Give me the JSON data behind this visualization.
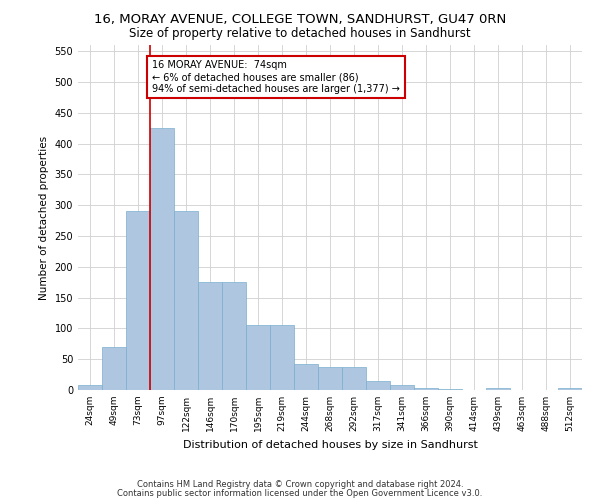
{
  "title1": "16, MORAY AVENUE, COLLEGE TOWN, SANDHURST, GU47 0RN",
  "title2": "Size of property relative to detached houses in Sandhurst",
  "xlabel": "Distribution of detached houses by size in Sandhurst",
  "ylabel": "Number of detached properties",
  "bar_labels": [
    "24sqm",
    "49sqm",
    "73sqm",
    "97sqm",
    "122sqm",
    "146sqm",
    "170sqm",
    "195sqm",
    "219sqm",
    "244sqm",
    "268sqm",
    "292sqm",
    "317sqm",
    "341sqm",
    "366sqm",
    "390sqm",
    "414sqm",
    "439sqm",
    "463sqm",
    "488sqm",
    "512sqm"
  ],
  "bar_values": [
    8,
    70,
    290,
    425,
    290,
    175,
    175,
    105,
    105,
    42,
    38,
    37,
    15,
    8,
    4,
    1,
    0,
    3,
    0,
    0,
    3
  ],
  "bar_color": "#aec6e0",
  "bar_edge_color": "#7aafd0",
  "vline_color": "#cc0000",
  "annotation_text": "16 MORAY AVENUE:  74sqm\n← 6% of detached houses are smaller (86)\n94% of semi-detached houses are larger (1,377) →",
  "annotation_box_color": "#ffffff",
  "annotation_box_edge": "#cc0000",
  "ylim": [
    0,
    560
  ],
  "yticks": [
    0,
    50,
    100,
    150,
    200,
    250,
    300,
    350,
    400,
    450,
    500,
    550
  ],
  "footer1": "Contains HM Land Registry data © Crown copyright and database right 2024.",
  "footer2": "Contains public sector information licensed under the Open Government Licence v3.0.",
  "bg_color": "#ffffff",
  "grid_color": "#d0d0d0"
}
